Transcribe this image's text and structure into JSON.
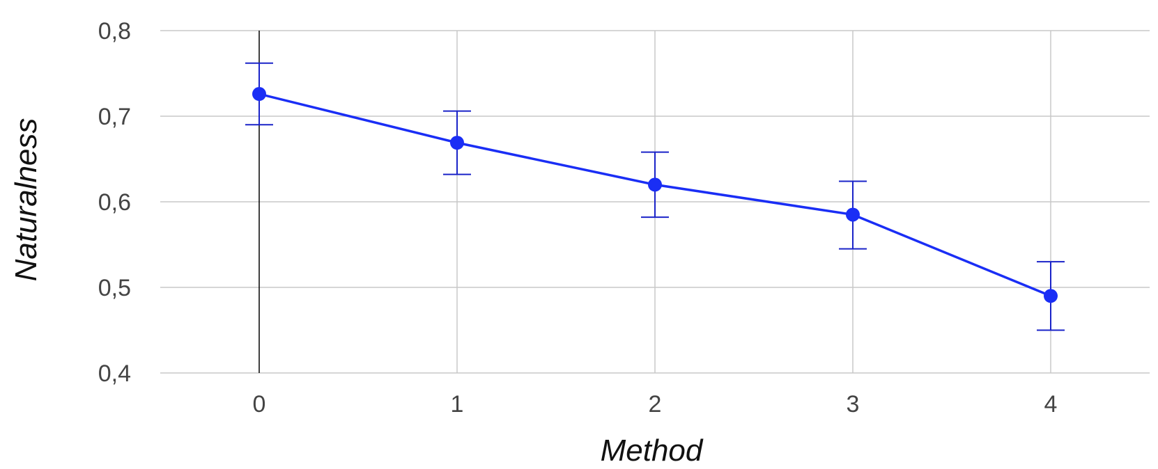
{
  "chart_data": {
    "type": "line",
    "xlabel": "Method",
    "ylabel": "Naturalness",
    "x": [
      0,
      1,
      2,
      3,
      4
    ],
    "x_tick_labels": [
      "0",
      "1",
      "2",
      "3",
      "4"
    ],
    "xlim": [
      -0.5,
      4.5
    ],
    "ylim": [
      0.4,
      0.8
    ],
    "y_ticks": [
      0.4,
      0.5,
      0.6,
      0.7,
      0.8
    ],
    "y_tick_labels": [
      "0,4",
      "0,5",
      "0,6",
      "0,7",
      "0,8"
    ],
    "grid": true,
    "series": [
      {
        "values": [
          0.726,
          0.669,
          0.62,
          0.585,
          0.49
        ],
        "error_low": [
          0.69,
          0.632,
          0.582,
          0.545,
          0.45
        ],
        "error_high": [
          0.762,
          0.706,
          0.658,
          0.624,
          0.53
        ],
        "color": "#1a2ef5",
        "error_color": "#1a23c8"
      }
    ],
    "zero_line_color": "#000000",
    "grid_color": "#c8c8c8"
  }
}
